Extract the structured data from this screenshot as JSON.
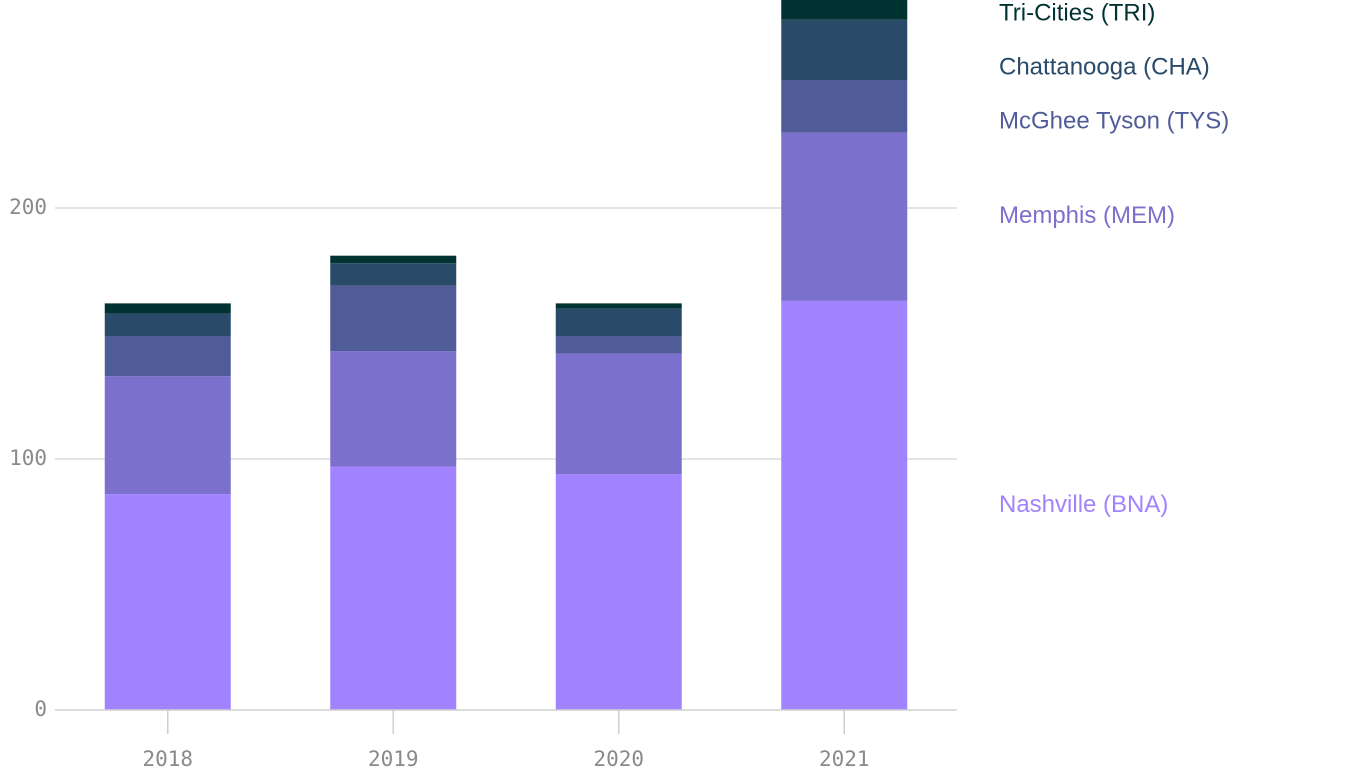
{
  "chart_data": {
    "type": "bar",
    "stacked": true,
    "title": "",
    "xlabel": "",
    "ylabel": "",
    "categories": [
      "2018",
      "2019",
      "2020",
      "2021"
    ],
    "ylim": [
      0,
      280
    ],
    "yticks": [
      0,
      100,
      200
    ],
    "grid": true,
    "legend_position": "right",
    "series": [
      {
        "name": "Nashville (BNA)",
        "color": "#a283ff",
        "values": [
          86,
          97,
          94,
          163
        ]
      },
      {
        "name": "Memphis (MEM)",
        "color": "#7b71cc",
        "values": [
          47,
          46,
          48,
          67
        ]
      },
      {
        "name": "McGhee Tyson (TYS)",
        "color": "#505c98",
        "values": [
          16,
          26,
          7,
          21
        ]
      },
      {
        "name": "Chattanooga (CHA)",
        "color": "#2a4a6a",
        "values": [
          9,
          9,
          11,
          24
        ]
      },
      {
        "name": "Tri-Cities (TRI)",
        "color": "#003331",
        "values": [
          4,
          3,
          2,
          8
        ]
      }
    ]
  }
}
